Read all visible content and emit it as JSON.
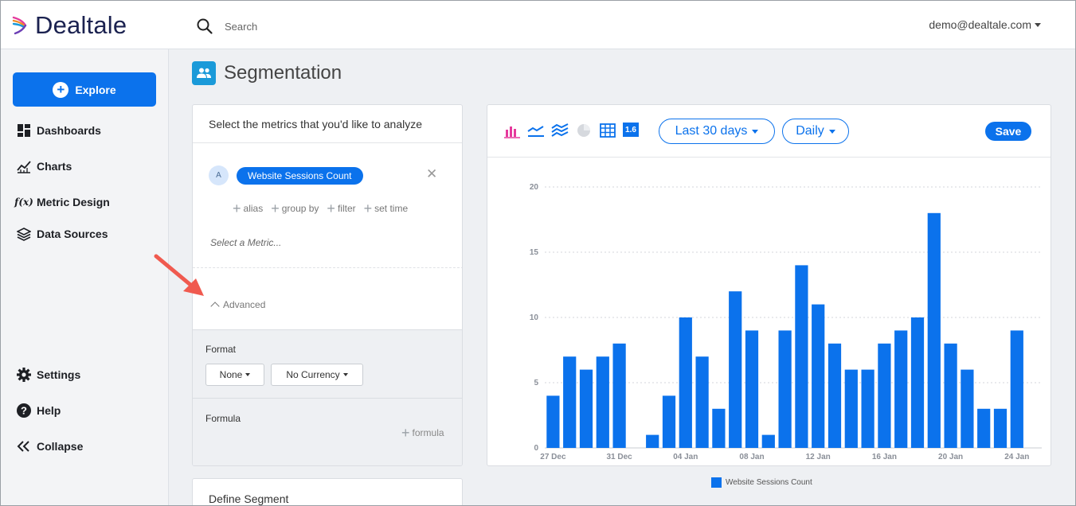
{
  "app": {
    "brand": "Dealtale",
    "user": "demo@dealtale.com"
  },
  "search": {
    "placeholder": "Search"
  },
  "sidebar": {
    "explore": "Explore",
    "items": [
      {
        "label": "Dashboards",
        "icon": "dashboard-icon"
      },
      {
        "label": "Charts",
        "icon": "chart-line-icon"
      },
      {
        "label": "Metric Design",
        "icon": "function-icon"
      },
      {
        "label": "Data Sources",
        "icon": "layers-icon"
      }
    ],
    "bottom": [
      {
        "label": "Settings",
        "icon": "gear-icon"
      },
      {
        "label": "Help",
        "icon": "help-icon"
      },
      {
        "label": "Collapse",
        "icon": "collapse-icon"
      }
    ]
  },
  "page": {
    "title": "Segmentation"
  },
  "metrics": {
    "header": "Select the metrics that you'd like to analyze",
    "metric_letter": "A",
    "metric_name": "Website Sessions Count",
    "options": [
      "alias",
      "group by",
      "filter",
      "set time"
    ],
    "select_placeholder": "Select a Metric...",
    "advanced": "Advanced",
    "format_label": "Format",
    "format_value": "None",
    "currency_value": "No Currency",
    "formula_label": "Formula",
    "formula_add": "formula"
  },
  "segment": {
    "title": "Define Segment"
  },
  "chart_toolbar": {
    "range": "Last 30 days",
    "interval": "Daily",
    "save": "Save",
    "number_icon_text": "1.6",
    "colors": {
      "accent": "#0b72ec",
      "bar_icon": "#e5399c"
    }
  },
  "chart_data": {
    "type": "bar",
    "x": [
      "27 Dec",
      "28 Dec",
      "29 Dec",
      "30 Dec",
      "31 Dec",
      "01 Jan",
      "02 Jan",
      "03 Jan",
      "04 Jan",
      "05 Jan",
      "06 Jan",
      "07 Jan",
      "08 Jan",
      "09 Jan",
      "10 Jan",
      "11 Jan",
      "12 Jan",
      "13 Jan",
      "14 Jan",
      "15 Jan",
      "16 Jan",
      "17 Jan",
      "18 Jan",
      "19 Jan",
      "20 Jan",
      "21 Jan",
      "22 Jan",
      "23 Jan",
      "24 Jan",
      "25 Jan"
    ],
    "x_tick_labels": [
      "27 Dec",
      "31 Dec",
      "04 Jan",
      "08 Jan",
      "12 Jan",
      "16 Jan",
      "20 Jan",
      "24 Jan"
    ],
    "series": [
      {
        "name": "Website Sessions Count",
        "values": [
          4,
          7,
          6,
          7,
          8,
          0,
          1,
          4,
          10,
          7,
          3,
          12,
          9,
          1,
          9,
          14,
          11,
          8,
          6,
          6,
          8,
          9,
          10,
          18,
          8,
          6,
          3,
          3,
          9,
          0
        ]
      }
    ],
    "ylim": [
      0,
      20
    ],
    "yticks": [
      0,
      5,
      10,
      15,
      20
    ],
    "grid": true,
    "legend": "bottom-center",
    "color": "#0b72ec"
  }
}
